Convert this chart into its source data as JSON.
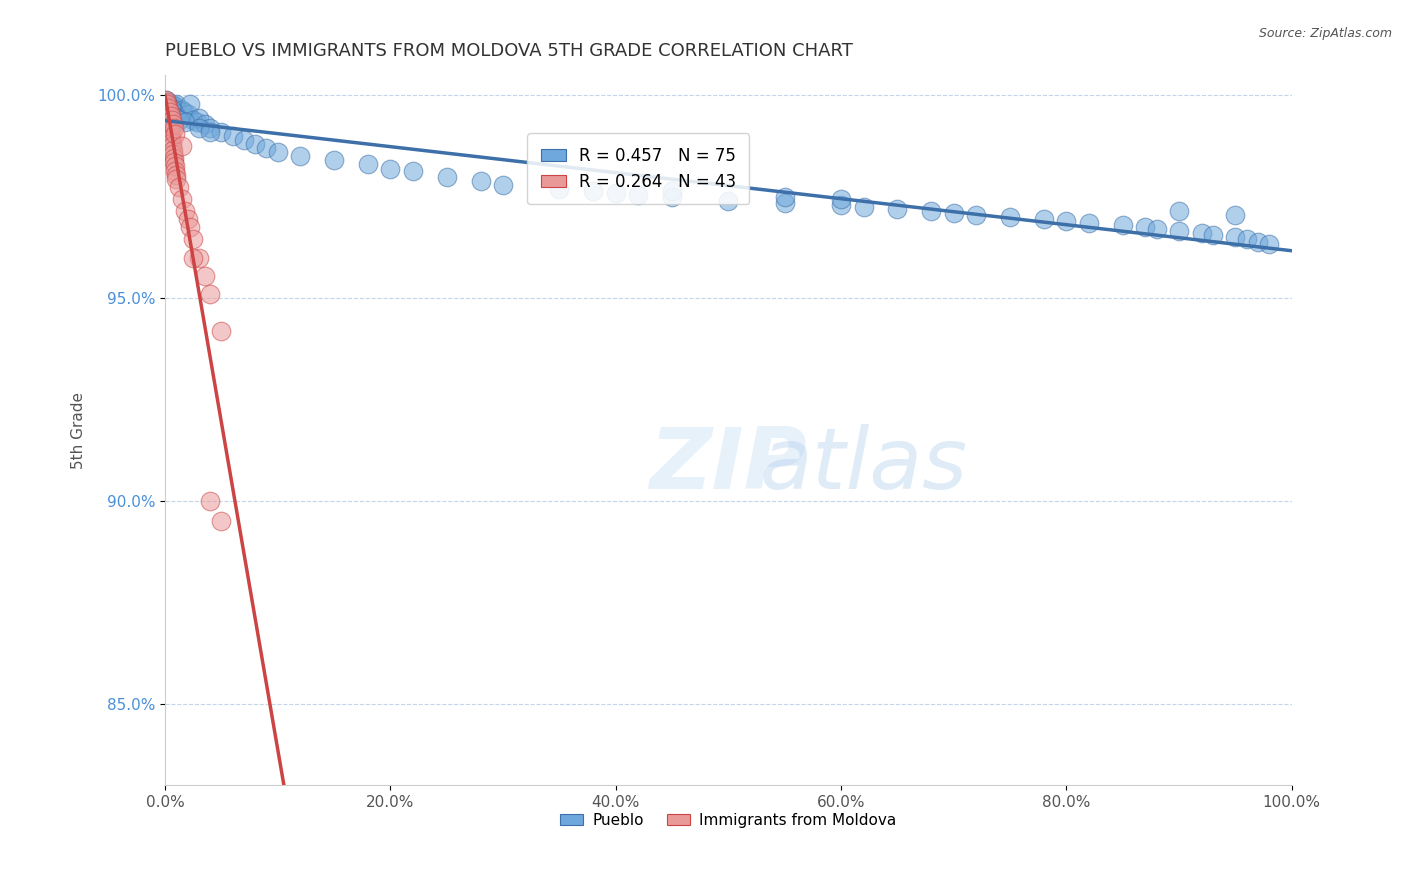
{
  "title": "PUEBLO VS IMMIGRANTS FROM MOLDOVA 5TH GRADE CORRELATION CHART",
  "source_text": "Source: ZipAtlas.com",
  "ylabel": "5th Grade",
  "xlabel": "",
  "watermark": "ZIPatlas",
  "blue_label": "Pueblo",
  "pink_label": "Immigrants from Moldova",
  "blue_R": 0.457,
  "blue_N": 75,
  "pink_R": 0.264,
  "pink_N": 43,
  "blue_color": "#6fa8dc",
  "pink_color": "#ea9999",
  "blue_line_color": "#3d6fa8",
  "pink_line_color": "#cc4444",
  "grid_color": "#aac4e0",
  "ytick_color": "#4a90d9",
  "title_color": "#333333",
  "blue_x": [
    0.001,
    0.002,
    0.003,
    0.004,
    0.005,
    0.006,
    0.007,
    0.008,
    0.009,
    0.01,
    0.015,
    0.017,
    0.02,
    0.022,
    0.025,
    0.028,
    0.03,
    0.035,
    0.04,
    0.05,
    0.06,
    0.07,
    0.08,
    0.09,
    0.1,
    0.12,
    0.15,
    0.18,
    0.2,
    0.22,
    0.25,
    0.28,
    0.3,
    0.35,
    0.38,
    0.4,
    0.42,
    0.45,
    0.5,
    0.55,
    0.6,
    0.62,
    0.65,
    0.68,
    0.7,
    0.72,
    0.75,
    0.78,
    0.8,
    0.82,
    0.85,
    0.87,
    0.88,
    0.9,
    0.92,
    0.93,
    0.95,
    0.96,
    0.97,
    0.98,
    0.002,
    0.003,
    0.004,
    0.005,
    0.008,
    0.01,
    0.012,
    0.018,
    0.03,
    0.04,
    0.45,
    0.55,
    0.6,
    0.9,
    0.95
  ],
  "blue_y": [
    0.999,
    0.9985,
    0.997,
    0.9975,
    0.9965,
    0.998,
    0.9955,
    0.997,
    0.9975,
    0.998,
    0.9965,
    0.996,
    0.9955,
    0.998,
    0.994,
    0.9935,
    0.9945,
    0.993,
    0.992,
    0.991,
    0.99,
    0.989,
    0.988,
    0.987,
    0.986,
    0.985,
    0.984,
    0.983,
    0.982,
    0.9815,
    0.98,
    0.979,
    0.978,
    0.977,
    0.9765,
    0.976,
    0.9755,
    0.975,
    0.974,
    0.9735,
    0.973,
    0.9725,
    0.972,
    0.9715,
    0.971,
    0.9705,
    0.97,
    0.9695,
    0.969,
    0.9685,
    0.968,
    0.9675,
    0.967,
    0.9665,
    0.966,
    0.9655,
    0.965,
    0.9645,
    0.964,
    0.9635,
    0.9985,
    0.9975,
    0.996,
    0.997,
    0.995,
    0.9945,
    0.994,
    0.9935,
    0.992,
    0.991,
    0.9765,
    0.975,
    0.9745,
    0.9715,
    0.9705
  ],
  "pink_x": [
    0.001,
    0.001,
    0.002,
    0.002,
    0.003,
    0.003,
    0.004,
    0.004,
    0.005,
    0.005,
    0.006,
    0.006,
    0.007,
    0.007,
    0.008,
    0.008,
    0.009,
    0.009,
    0.01,
    0.01,
    0.012,
    0.015,
    0.018,
    0.02,
    0.022,
    0.025,
    0.03,
    0.035,
    0.04,
    0.05,
    0.001,
    0.002,
    0.003,
    0.004,
    0.005,
    0.006,
    0.007,
    0.008,
    0.009,
    0.015,
    0.025,
    0.04,
    0.05
  ],
  "pink_y": [
    0.9985,
    0.9975,
    0.9965,
    0.9955,
    0.9945,
    0.9935,
    0.9925,
    0.9915,
    0.9905,
    0.9895,
    0.9885,
    0.9875,
    0.9865,
    0.9855,
    0.9845,
    0.9835,
    0.9825,
    0.9815,
    0.9805,
    0.9795,
    0.9775,
    0.9745,
    0.9715,
    0.9695,
    0.9675,
    0.9645,
    0.96,
    0.9555,
    0.951,
    0.942,
    0.999,
    0.998,
    0.997,
    0.996,
    0.995,
    0.994,
    0.993,
    0.992,
    0.9905,
    0.9875,
    0.96,
    0.9,
    0.895
  ],
  "xmin": 0.0,
  "xmax": 1.0,
  "ymin": 0.83,
  "ymax": 1.005,
  "yticks": [
    0.85,
    0.9,
    0.95,
    1.0
  ],
  "ytick_labels": [
    "85.0%",
    "90.0%",
    "95.0%",
    "100.0%"
  ],
  "xticks": [
    0.0,
    0.2,
    0.4,
    0.6,
    0.8,
    1.0
  ],
  "xtick_labels": [
    "0.0%",
    "20.0%",
    "40.0%",
    "60.0%",
    "80.0%",
    "100.0%"
  ]
}
